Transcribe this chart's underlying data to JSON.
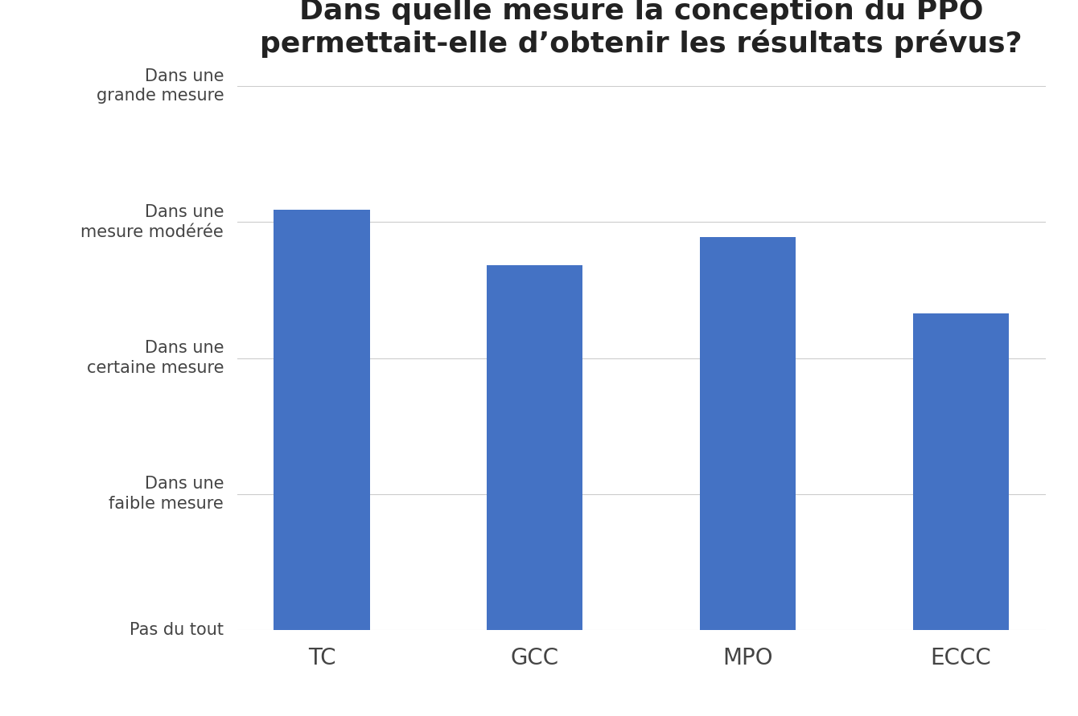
{
  "title_line1": "Dans quelle mesure la conception du PPO",
  "title_line2": "permettait-elle d’obtenir les résultats prévus?",
  "categories": [
    "TC",
    "GCC",
    "MPO",
    "ECCC"
  ],
  "values": [
    3.09,
    2.68,
    2.89,
    2.33
  ],
  "bar_color": "#4472C4",
  "ylim": [
    0,
    4
  ],
  "ytick_positions": [
    0,
    1,
    2,
    3,
    4
  ],
  "ytick_labels": [
    "Pas du tout",
    "Dans une\nfaible mesure",
    "Dans une\ncertaine mesure",
    "Dans une\nmesure modérée",
    "Dans une\ngrande mesure"
  ],
  "background_color": "#ffffff",
  "title_fontsize": 26,
  "tick_fontsize": 15,
  "xtick_fontsize": 20,
  "bar_width": 0.45,
  "grid_color": "#cccccc",
  "text_color": "#444444"
}
